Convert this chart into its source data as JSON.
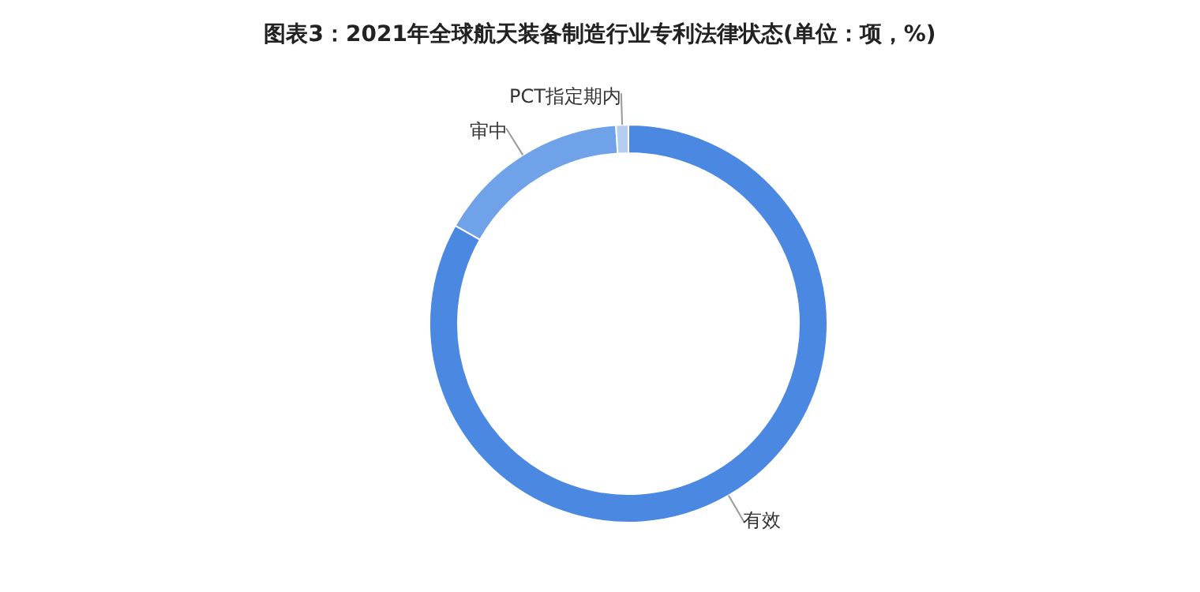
{
  "chart_data": {
    "type": "donut",
    "title": "图表3：2021年全球航天装备制造行业专利法律状态(单位：项，%)",
    "categories": [
      "有效",
      "审中",
      "PCT指定期内"
    ],
    "values": [
      83.2,
      15.8,
      1.0
    ],
    "colors": [
      "#4a88e2",
      "#70a2ea",
      "#b6cdf2"
    ],
    "legend": false
  }
}
